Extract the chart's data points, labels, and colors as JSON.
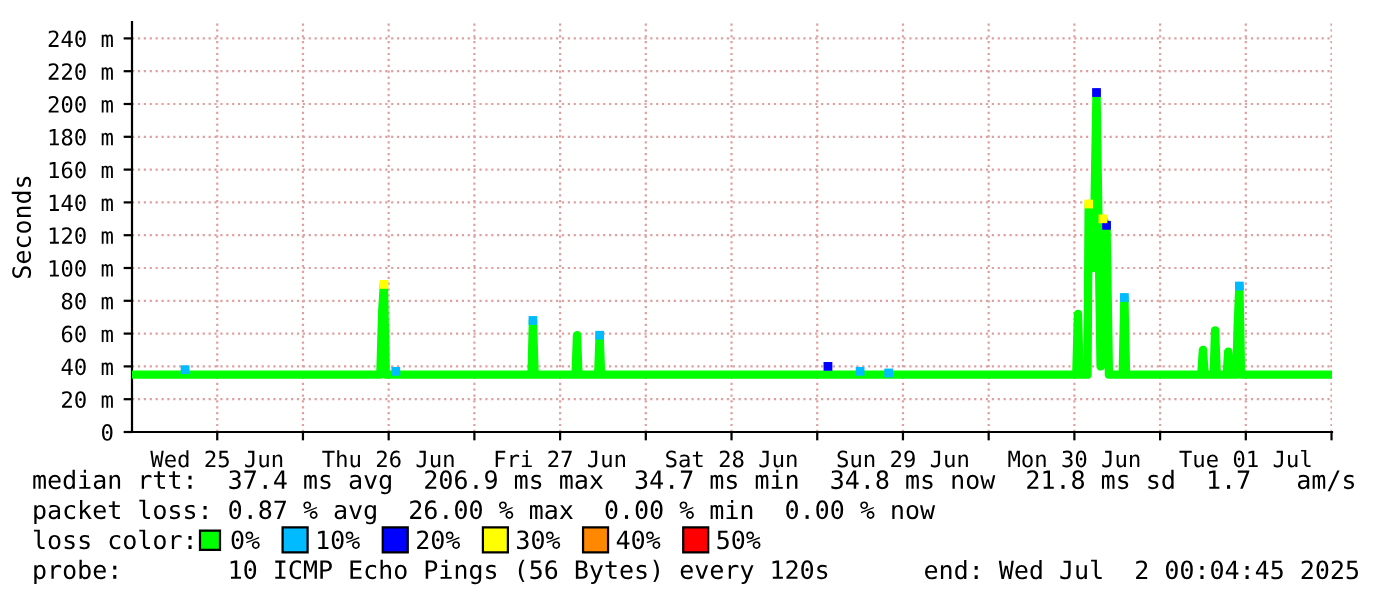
{
  "chart_data": {
    "type": "line",
    "ylabel": "Seconds",
    "legend_title": "loss color:",
    "legend": "bottom",
    "grid": true,
    "marker": "none",
    "xlim": [
      "2025-06-25T00:04",
      "2025-07-02T00:04"
    ],
    "xticks": [
      {
        "value": "2025-06-25T12:00",
        "label": "Wed 25 Jun"
      },
      {
        "value": "2025-06-26T00:00",
        "label": null
      },
      {
        "value": "2025-06-26T12:00",
        "label": "Thu 26 Jun"
      },
      {
        "value": "2025-06-27T00:00",
        "label": null
      },
      {
        "value": "2025-06-27T12:00",
        "label": "Fri 27 Jun"
      },
      {
        "value": "2025-06-28T00:00",
        "label": null
      },
      {
        "value": "2025-06-28T12:00",
        "label": "Sat 28 Jun"
      },
      {
        "value": "2025-06-29T00:00",
        "label": null
      },
      {
        "value": "2025-06-29T12:00",
        "label": "Sun 29 Jun"
      },
      {
        "value": "2025-06-30T00:00",
        "label": null
      },
      {
        "value": "2025-06-30T12:00",
        "label": "Mon 30 Jun"
      },
      {
        "value": "2025-07-01T00:00",
        "label": null
      },
      {
        "value": "2025-07-01T12:00",
        "label": "Tue 01 Jul"
      },
      {
        "value": "2025-07-02T00:00",
        "label": null
      }
    ],
    "ylim": [
      0,
      250
    ],
    "yticks": [
      0,
      {
        "value": 20,
        "label": "20 m"
      },
      {
        "value": 40,
        "label": "40 m"
      },
      {
        "value": 60,
        "label": "60 m"
      },
      {
        "value": 80,
        "label": "80 m"
      },
      {
        "value": 100,
        "label": "100 m"
      },
      {
        "value": 120,
        "label": "120 m"
      },
      {
        "value": 140,
        "label": "140 m"
      },
      {
        "value": 160,
        "label": "160 m"
      },
      {
        "value": 180,
        "label": "180 m"
      },
      {
        "value": 200,
        "label": "200 m"
      },
      {
        "value": 220,
        "label": "220 m"
      },
      {
        "value": 240,
        "label": "240 m"
      }
    ],
    "series": [
      {
        "name": "0%",
        "color": "#00ff00",
        "x": [
          "2025-06-25T00:04",
          "2025-06-26T10:50",
          "2025-06-26T11:06",
          "2025-06-26T11:20",
          "2025-06-26T11:36",
          "2025-06-27T08:00",
          "2025-06-27T08:12",
          "2025-06-27T08:26",
          "2025-06-27T14:10",
          "2025-06-27T14:22",
          "2025-06-27T14:34",
          "2025-06-27T17:20",
          "2025-06-27T17:32",
          "2025-06-27T17:44",
          "2025-06-30T12:16",
          "2025-06-30T12:30",
          "2025-06-30T12:44",
          "2025-06-30T13:50",
          "2025-06-30T14:00",
          "2025-06-30T14:40",
          "2025-06-30T15:06",
          "2025-06-30T15:40",
          "2025-06-30T16:00",
          "2025-06-30T16:30",
          "2025-06-30T16:50",
          "2025-06-30T18:46",
          "2025-06-30T19:00",
          "2025-06-30T19:14",
          "2025-07-01T05:46",
          "2025-07-01T06:00",
          "2025-07-01T06:14",
          "2025-07-01T07:30",
          "2025-07-01T07:42",
          "2025-07-01T07:56",
          "2025-07-01T09:20",
          "2025-07-01T09:32",
          "2025-07-01T09:46",
          "2025-07-01T10:40",
          "2025-07-01T10:52",
          "2025-07-01T11:06",
          "2025-07-01T11:20",
          "2025-07-02T00:04"
        ],
        "values": [
          35,
          35,
          74,
          90,
          35,
          35,
          68,
          35,
          35,
          59,
          35,
          35,
          59,
          35,
          35,
          72,
          35,
          35,
          139,
          100,
          207,
          40,
          130,
          126,
          35,
          35,
          82,
          35,
          35,
          50,
          35,
          35,
          62,
          35,
          35,
          49,
          35,
          35,
          65,
          89,
          35,
          35
        ]
      },
      {
        "name": "10%",
        "type": "scatter",
        "marker": "square",
        "color": "#00bbff",
        "x": [
          "2025-06-25T07:30",
          "2025-06-26T13:00",
          "2025-06-27T08:12",
          "2025-06-27T17:32",
          "2025-06-29T06:00",
          "2025-06-29T10:00",
          "2025-06-30T19:00",
          "2025-07-01T11:06"
        ],
        "values": [
          38,
          37,
          68,
          59,
          37,
          36,
          82,
          89
        ]
      },
      {
        "name": "20%",
        "type": "scatter",
        "marker": "square",
        "color": "#0000ff",
        "x": [
          "2025-06-29T01:30",
          "2025-06-30T15:06",
          "2025-06-30T16:30"
        ],
        "values": [
          40,
          207,
          126
        ]
      },
      {
        "name": "30%",
        "type": "scatter",
        "marker": "square",
        "color": "#ffff00",
        "x": [
          "2025-06-26T11:20",
          "2025-06-30T14:00",
          "2025-06-30T16:00"
        ],
        "values": [
          90,
          139,
          130
        ]
      },
      {
        "name": "40%",
        "type": "scatter",
        "marker": "square",
        "color": "#ff8800"
      },
      {
        "name": "50%",
        "type": "scatter",
        "marker": "square",
        "color": "#ff0000"
      }
    ],
    "annotations": [
      "median rtt:  37.4 ms avg  206.9 ms max  34.7 ms min  34.8 ms now  21.8 ms sd  1.7   am/s",
      "packet loss: 0.87 % avg  26.00 % max  0.00 % min  0.00 % now",
      "probe:       10 ICMP Echo Pings (56 Bytes) every 120s",
      "end: Wed Jul  2 00:04:45 2025"
    ]
  }
}
